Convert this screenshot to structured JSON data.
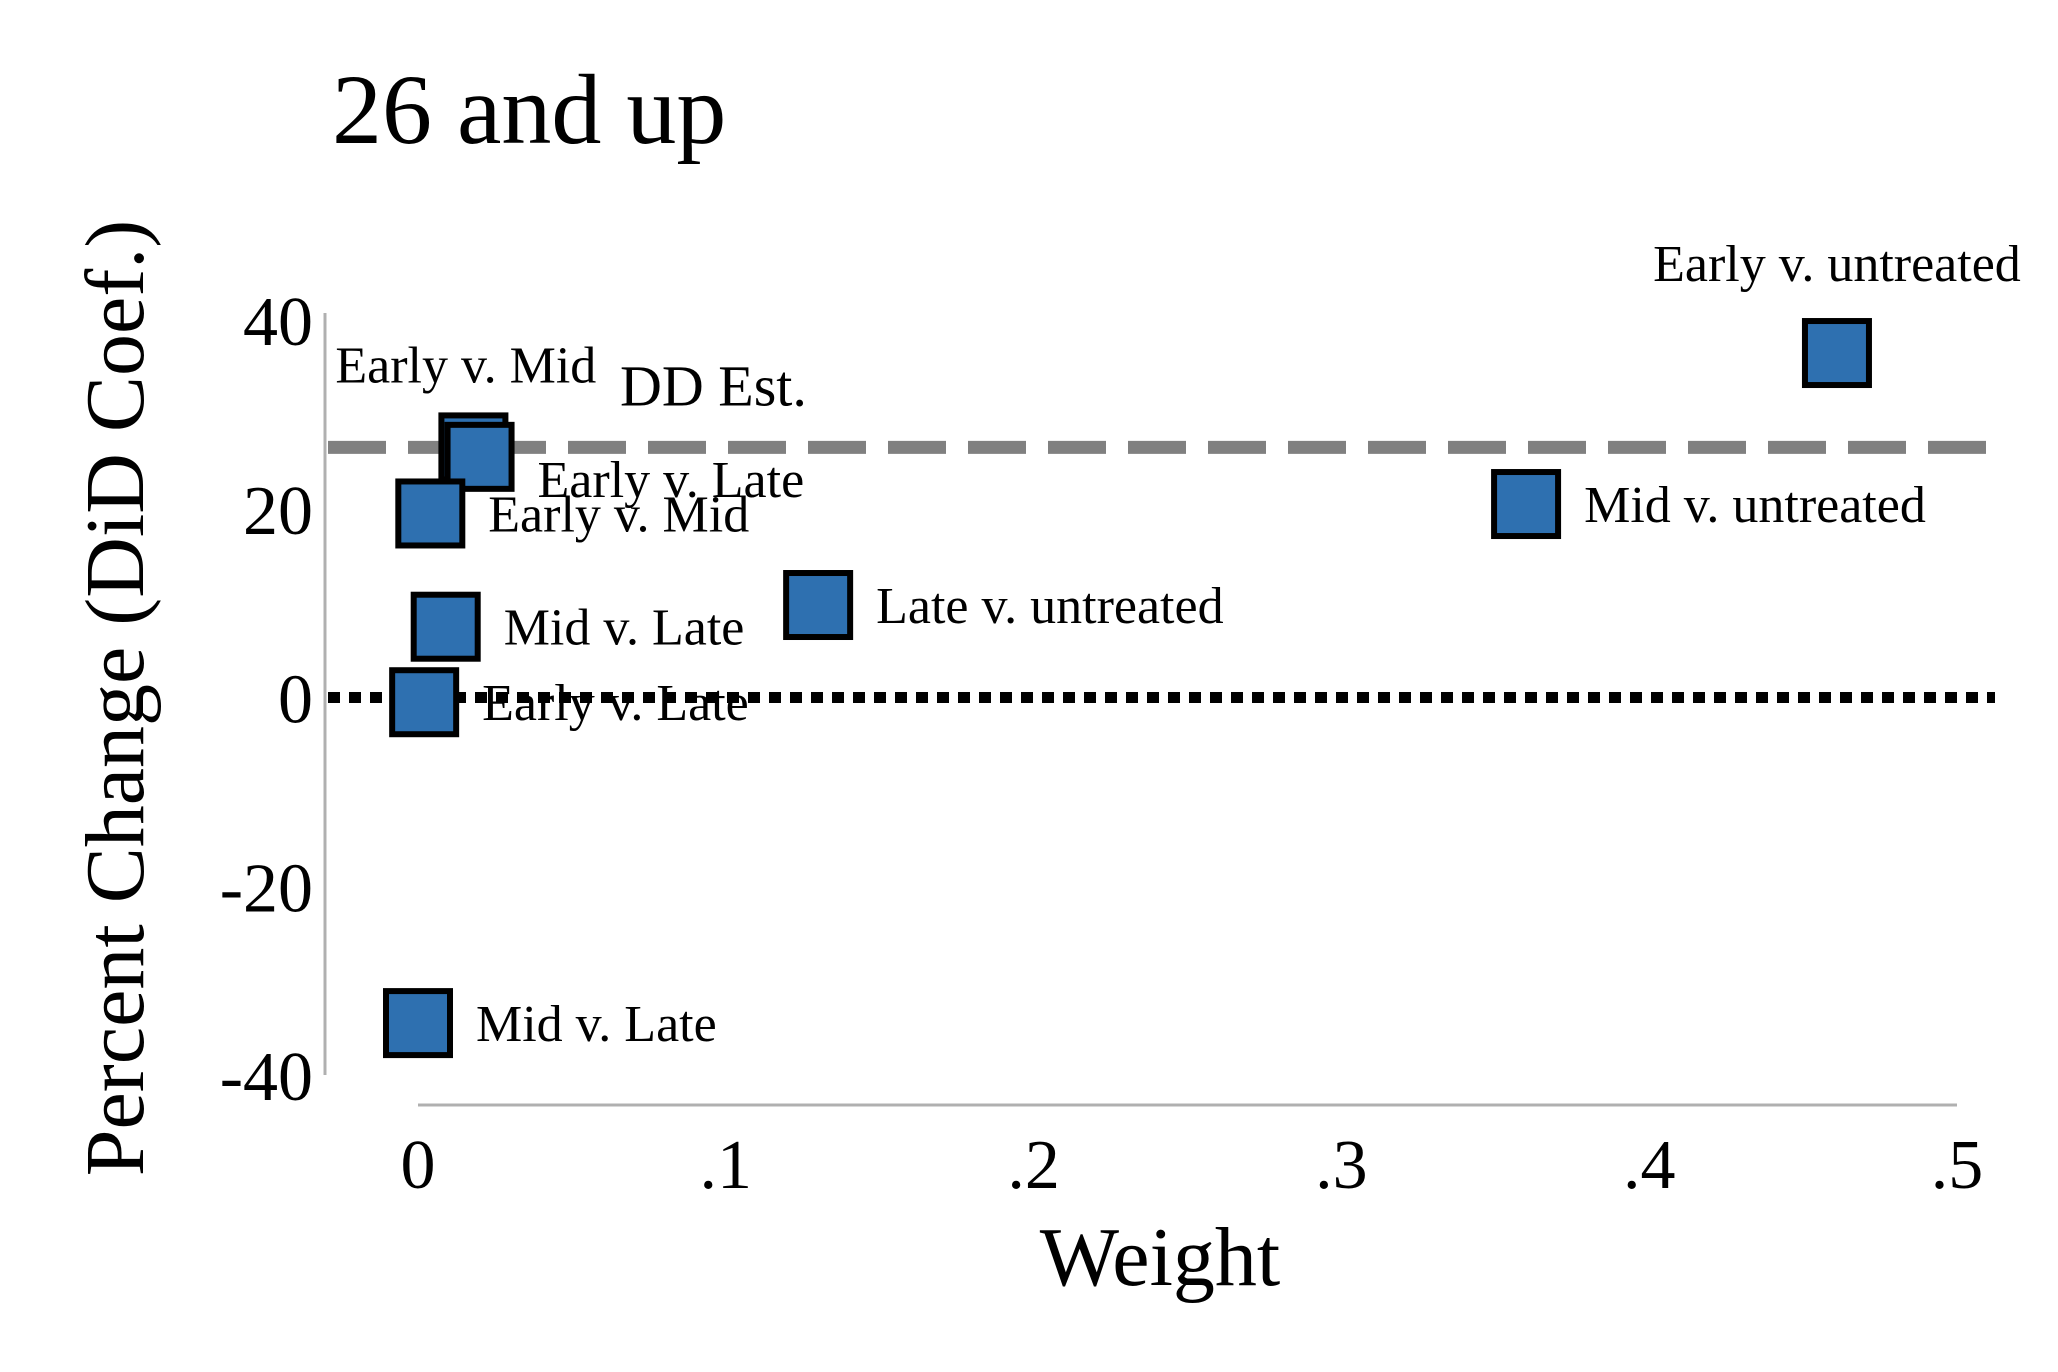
{
  "chart_data": {
    "type": "scatter",
    "title": "26 and up",
    "xlabel": "Weight",
    "ylabel": "Percent Change (DiD Coef.)",
    "xlim": [
      0,
      0.5
    ],
    "ylim": [
      -40,
      40
    ],
    "x_ticks": [
      {
        "value": 0,
        "label": "0"
      },
      {
        "value": 0.1,
        "label": ".1"
      },
      {
        "value": 0.2,
        "label": ".2"
      },
      {
        "value": 0.3,
        "label": ".3"
      },
      {
        "value": 0.4,
        "label": ".4"
      },
      {
        "value": 0.5,
        "label": ".5"
      }
    ],
    "y_ticks": [
      {
        "value": 40,
        "label": "40"
      },
      {
        "value": 20,
        "label": "20"
      },
      {
        "value": 0,
        "label": "0"
      },
      {
        "value": -20,
        "label": "-20"
      },
      {
        "value": -40,
        "label": "-40"
      }
    ],
    "reference_lines": [
      {
        "value": 26.5,
        "label": "DD Est.",
        "style": "dashed",
        "color": "#808080"
      },
      {
        "value": 0,
        "label": "",
        "style": "dotted",
        "color": "#000000"
      }
    ],
    "marker_color": "#2e70b0",
    "marker_edge_color": "#000000",
    "points": [
      {
        "x": 0.461,
        "y": 36.5,
        "label": "Early v. untreated",
        "label_pos": "above"
      },
      {
        "x": 0.36,
        "y": 20.5,
        "label": "Mid v. untreated",
        "label_pos": "right"
      },
      {
        "x": 0.13,
        "y": 9.8,
        "label": "Late v. untreated",
        "label_pos": "right"
      },
      {
        "x": 0.018,
        "y": 26.5,
        "label": "Early v. Mid",
        "label_pos": "above-left"
      },
      {
        "x": 0.02,
        "y": 25.5,
        "label": "Early v. Late",
        "label_pos": "right-low"
      },
      {
        "x": 0.004,
        "y": 19.5,
        "label": "Early v. Mid",
        "label_pos": "right"
      },
      {
        "x": 0.009,
        "y": 7.5,
        "label": "Mid v. Late",
        "label_pos": "right"
      },
      {
        "x": 0.002,
        "y": -0.5,
        "label": "Early v. Late",
        "label_pos": "right"
      },
      {
        "x": 0.0,
        "y": -34.5,
        "label": "Mid v. Late",
        "label_pos": "right"
      }
    ]
  }
}
